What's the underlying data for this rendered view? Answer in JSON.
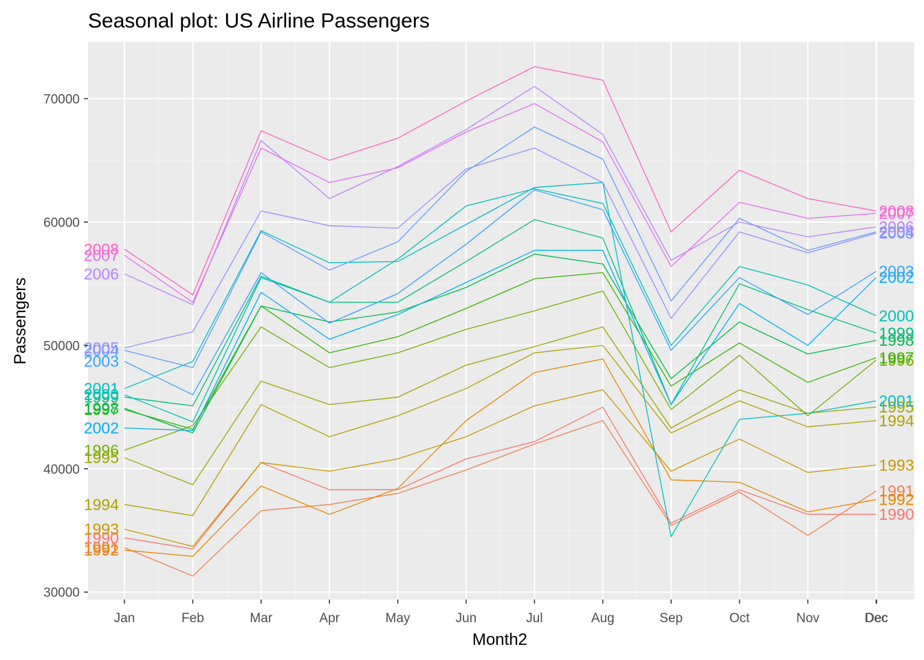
{
  "chart_data": {
    "type": "line",
    "title": "Seasonal plot: US Airline Passengers",
    "xlabel": "Month2",
    "ylabel": "Passengers",
    "x_ticks": [
      "Jan",
      "Feb",
      "Mar",
      "Apr",
      "May",
      "Jun",
      "Jul",
      "Aug",
      "Sep",
      "Oct",
      "Nov",
      "Dec",
      "Dec"
    ],
    "y_ticks": [
      "30000",
      "40000",
      "50000",
      "60000",
      "70000"
    ],
    "ylim": [
      29400,
      74600
    ],
    "grid": true,
    "legend": "none",
    "series": [
      {
        "name": "1990",
        "color": "#F8766D",
        "values": [
          34400,
          33500,
          40500,
          38300,
          38300,
          40800,
          42200,
          45000,
          35600,
          38300,
          36300,
          36300
        ]
      },
      {
        "name": "1991",
        "color": "#F07F4F",
        "values": [
          33600,
          31300,
          36600,
          37100,
          38000,
          39900,
          42000,
          43900,
          35400,
          38100,
          34600,
          38200
        ]
      },
      {
        "name": "1992",
        "color": "#E58700",
        "values": [
          33400,
          32900,
          38600,
          36300,
          38400,
          43900,
          47800,
          48900,
          39100,
          38900,
          36500,
          37500
        ]
      },
      {
        "name": "1993",
        "color": "#C99800",
        "values": [
          35100,
          33700,
          40500,
          39800,
          40800,
          42600,
          45100,
          46400,
          39800,
          42400,
          39700,
          40300
        ]
      },
      {
        "name": "1994",
        "color": "#B2A000",
        "values": [
          37100,
          36200,
          45200,
          42600,
          44300,
          46500,
          49400,
          50000,
          42900,
          45500,
          43400,
          43900
        ]
      },
      {
        "name": "1995",
        "color": "#9AA800",
        "values": [
          40900,
          38700,
          47100,
          45200,
          45800,
          48400,
          49900,
          51500,
          43300,
          46400,
          44500,
          45000
        ]
      },
      {
        "name": "1996",
        "color": "#76AE00",
        "values": [
          41500,
          43500,
          51500,
          48200,
          49400,
          51300,
          52800,
          54400,
          44800,
          49200,
          44300,
          48800
        ]
      },
      {
        "name": "1997",
        "color": "#39B600",
        "values": [
          44800,
          43200,
          53200,
          49400,
          50700,
          53000,
          55400,
          55900,
          46700,
          50200,
          47000,
          49000
        ]
      },
      {
        "name": "1998",
        "color": "#00BB4E",
        "values": [
          44900,
          42900,
          53200,
          51900,
          52700,
          54700,
          57400,
          56600,
          47300,
          51900,
          49300,
          50400
        ]
      },
      {
        "name": "1999",
        "color": "#00BF7D",
        "values": [
          45800,
          45100,
          55600,
          53500,
          53500,
          56800,
          60200,
          58700,
          45200,
          55000,
          52900,
          51000
        ]
      },
      {
        "name": "2000",
        "color": "#00C0B8",
        "values": [
          46000,
          43800,
          55500,
          53500,
          57000,
          61300,
          62700,
          61500,
          50000,
          56400,
          54900,
          52400
        ]
      },
      {
        "name": "2001",
        "color": "#00BFC4",
        "values": [
          46500,
          48700,
          59300,
          56700,
          56800,
          59800,
          62800,
          63200,
          34500,
          44000,
          44500,
          45500
        ]
      },
      {
        "name": "2002",
        "color": "#00B0F6",
        "values": [
          43300,
          43100,
          54300,
          50500,
          52500,
          55100,
          57700,
          57700,
          45200,
          53400,
          50000,
          55500
        ]
      },
      {
        "name": "2003",
        "color": "#35A2FF",
        "values": [
          48700,
          46000,
          55900,
          51800,
          54200,
          58200,
          62600,
          61000,
          49600,
          55500,
          52500,
          56000
        ]
      },
      {
        "name": "2004",
        "color": "#619CFF",
        "values": [
          49600,
          48200,
          59200,
          56100,
          58400,
          64100,
          67700,
          65100,
          53600,
          60300,
          57700,
          59200
        ]
      },
      {
        "name": "2005",
        "color": "#9590FF",
        "values": [
          49800,
          51100,
          60900,
          59700,
          59500,
          64300,
          66000,
          63200,
          52200,
          59200,
          57500,
          59100
        ]
      },
      {
        "name": "2006",
        "color": "#B983FF",
        "values": [
          55800,
          53300,
          66600,
          61900,
          64500,
          67500,
          71000,
          67100,
          56900,
          60000,
          58800,
          59600
        ]
      },
      {
        "name": "2007",
        "color": "#E76BF3",
        "values": [
          57300,
          53500,
          66000,
          63200,
          64400,
          67300,
          69600,
          66500,
          56400,
          61600,
          60300,
          60700
        ]
      },
      {
        "name": "2008",
        "color": "#FF61C3",
        "values": [
          57800,
          54100,
          67400,
          65000,
          66800,
          69800,
          72600,
          71500,
          59200,
          64200,
          61900,
          60900
        ]
      }
    ]
  }
}
